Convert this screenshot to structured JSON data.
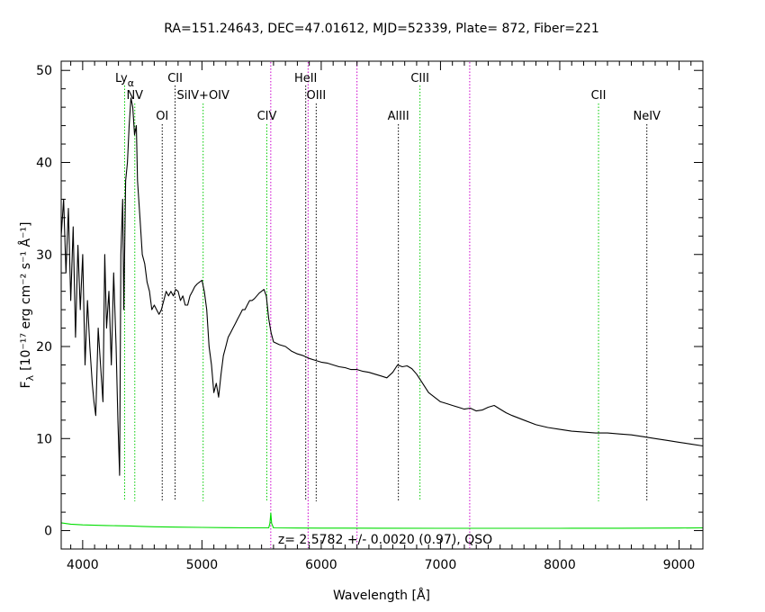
{
  "chart_data": {
    "type": "line",
    "title": "RA=151.24643, DEC=47.01612, MJD=52339, Plate= 872, Fiber=221",
    "xlabel": "Wavelength [Å]",
    "ylabel": "F",
    "ylabel_sub": "λ",
    "ylabel_units": "[10⁻¹⁷ erg cm⁻² s⁻¹ Å⁻¹]",
    "xlim": [
      3820,
      9200
    ],
    "ylim": [
      -2,
      51
    ],
    "x_ticks": [
      4000,
      5000,
      6000,
      7000,
      8000,
      9000
    ],
    "y_ticks": [
      0,
      10,
      20,
      30,
      40,
      50
    ],
    "annotation": "z=  2.5782  +/-  0.0020 (0.97), QSO",
    "colors": {
      "flux": "#000000",
      "error": "#00dd00",
      "emission": "#00cc00",
      "absorption": "#000000",
      "sky": "#cc00cc"
    },
    "lines": [
      {
        "label": "Lyα",
        "name": "Ly",
        "sub": "α",
        "wavelength": 4352,
        "kind": "emission",
        "row": 1
      },
      {
        "label": "NV",
        "wavelength": 4437,
        "kind": "emission",
        "row": 2
      },
      {
        "label": "OI",
        "wavelength": 4667,
        "kind": "absorption",
        "row": 3
      },
      {
        "label": "CII",
        "wavelength": 4775,
        "kind": "absorption",
        "row": 1
      },
      {
        "label": "SiIV+OIV",
        "wavelength": 5010,
        "kind": "emission",
        "row": 2
      },
      {
        "label": "CIV",
        "wavelength": 5544,
        "kind": "emission",
        "row": 3
      },
      {
        "label": "HeII",
        "wavelength": 5870,
        "kind": "absorption",
        "row": 1
      },
      {
        "label": "OIII",
        "wavelength": 5958,
        "kind": "absorption",
        "row": 2
      },
      {
        "label": "AlIII",
        "wavelength": 6647,
        "kind": "absorption",
        "row": 3
      },
      {
        "label": "CIII",
        "wavelength": 6828,
        "kind": "emission",
        "row": 1
      },
      {
        "label": "CII",
        "wavelength": 8325,
        "kind": "emission",
        "row": 2
      },
      {
        "label": "NeIV",
        "wavelength": 8730,
        "kind": "absorption",
        "row": 3
      }
    ],
    "sky_lines": [
      5577,
      5890,
      6300,
      7245
    ],
    "series": [
      {
        "name": "flux",
        "points": [
          [
            3820,
            32
          ],
          [
            3840,
            36
          ],
          [
            3860,
            28
          ],
          [
            3880,
            35
          ],
          [
            3900,
            25
          ],
          [
            3920,
            33
          ],
          [
            3940,
            21
          ],
          [
            3960,
            31
          ],
          [
            3980,
            24
          ],
          [
            4000,
            30
          ],
          [
            4020,
            18
          ],
          [
            4040,
            25
          ],
          [
            4060,
            20
          ],
          [
            4080,
            16
          ],
          [
            4095,
            14
          ],
          [
            4110,
            12.5
          ],
          [
            4130,
            22
          ],
          [
            4150,
            18
          ],
          [
            4170,
            14
          ],
          [
            4185,
            30
          ],
          [
            4200,
            22
          ],
          [
            4220,
            26
          ],
          [
            4240,
            18
          ],
          [
            4260,
            28
          ],
          [
            4280,
            20
          ],
          [
            4295,
            12
          ],
          [
            4310,
            6
          ],
          [
            4320,
            30
          ],
          [
            4335,
            36
          ],
          [
            4345,
            24
          ],
          [
            4360,
            38
          ],
          [
            4375,
            40
          ],
          [
            4390,
            44
          ],
          [
            4405,
            47
          ],
          [
            4420,
            46
          ],
          [
            4435,
            43
          ],
          [
            4450,
            44
          ],
          [
            4460,
            38
          ],
          [
            4480,
            34
          ],
          [
            4500,
            30
          ],
          [
            4520,
            29
          ],
          [
            4540,
            27
          ],
          [
            4560,
            26
          ],
          [
            4580,
            24
          ],
          [
            4600,
            24.5
          ],
          [
            4620,
            24
          ],
          [
            4640,
            23.5
          ],
          [
            4660,
            24
          ],
          [
            4680,
            25
          ],
          [
            4700,
            26
          ],
          [
            4720,
            25.5
          ],
          [
            4740,
            26
          ],
          [
            4760,
            25.5
          ],
          [
            4780,
            26.2
          ],
          [
            4800,
            26
          ],
          [
            4820,
            25
          ],
          [
            4840,
            25.5
          ],
          [
            4860,
            24.5
          ],
          [
            4880,
            24.5
          ],
          [
            4900,
            25.5
          ],
          [
            4920,
            26
          ],
          [
            4940,
            26.5
          ],
          [
            4960,
            26.8
          ],
          [
            4980,
            27
          ],
          [
            5000,
            27.2
          ],
          [
            5020,
            26
          ],
          [
            5040,
            24
          ],
          [
            5060,
            20
          ],
          [
            5080,
            18
          ],
          [
            5100,
            15
          ],
          [
            5120,
            16
          ],
          [
            5140,
            14.5
          ],
          [
            5160,
            17
          ],
          [
            5180,
            19
          ],
          [
            5200,
            20
          ],
          [
            5220,
            21
          ],
          [
            5240,
            21.5
          ],
          [
            5260,
            22
          ],
          [
            5280,
            22.5
          ],
          [
            5300,
            23
          ],
          [
            5320,
            23.5
          ],
          [
            5340,
            24
          ],
          [
            5360,
            24
          ],
          [
            5380,
            24.5
          ],
          [
            5400,
            25
          ],
          [
            5420,
            25
          ],
          [
            5440,
            25.2
          ],
          [
            5460,
            25.5
          ],
          [
            5480,
            25.8
          ],
          [
            5500,
            26
          ],
          [
            5520,
            26.2
          ],
          [
            5540,
            25.5
          ],
          [
            5560,
            23
          ],
          [
            5580,
            21.5
          ],
          [
            5600,
            20.5
          ],
          [
            5650,
            20.2
          ],
          [
            5700,
            20
          ],
          [
            5750,
            19.5
          ],
          [
            5800,
            19.2
          ],
          [
            5850,
            19
          ],
          [
            5900,
            18.7
          ],
          [
            5950,
            18.5
          ],
          [
            6000,
            18.3
          ],
          [
            6050,
            18.2
          ],
          [
            6100,
            18
          ],
          [
            6150,
            17.8
          ],
          [
            6200,
            17.7
          ],
          [
            6250,
            17.5
          ],
          [
            6300,
            17.5
          ],
          [
            6350,
            17.3
          ],
          [
            6400,
            17.2
          ],
          [
            6450,
            17
          ],
          [
            6500,
            16.8
          ],
          [
            6550,
            16.6
          ],
          [
            6600,
            17.2
          ],
          [
            6640,
            18
          ],
          [
            6680,
            17.8
          ],
          [
            6720,
            17.9
          ],
          [
            6760,
            17.6
          ],
          [
            6800,
            17
          ],
          [
            6850,
            16
          ],
          [
            6900,
            15
          ],
          [
            6950,
            14.5
          ],
          [
            7000,
            14
          ],
          [
            7050,
            13.8
          ],
          [
            7100,
            13.6
          ],
          [
            7150,
            13.4
          ],
          [
            7200,
            13.2
          ],
          [
            7250,
            13.3
          ],
          [
            7300,
            13
          ],
          [
            7350,
            13.1
          ],
          [
            7400,
            13.4
          ],
          [
            7450,
            13.6
          ],
          [
            7500,
            13.2
          ],
          [
            7550,
            12.8
          ],
          [
            7600,
            12.5
          ],
          [
            7700,
            12
          ],
          [
            7800,
            11.5
          ],
          [
            7900,
            11.2
          ],
          [
            8000,
            11
          ],
          [
            8100,
            10.8
          ],
          [
            8200,
            10.7
          ],
          [
            8300,
            10.6
          ],
          [
            8400,
            10.6
          ],
          [
            8500,
            10.5
          ],
          [
            8600,
            10.4
          ],
          [
            8700,
            10.2
          ],
          [
            8800,
            10
          ],
          [
            8900,
            9.8
          ],
          [
            9000,
            9.6
          ],
          [
            9100,
            9.4
          ],
          [
            9200,
            9.2
          ]
        ]
      },
      {
        "name": "error",
        "points": [
          [
            3820,
            0.85
          ],
          [
            3900,
            0.7
          ],
          [
            4000,
            0.62
          ],
          [
            4100,
            0.58
          ],
          [
            4200,
            0.55
          ],
          [
            4300,
            0.52
          ],
          [
            4400,
            0.5
          ],
          [
            4500,
            0.45
          ],
          [
            4600,
            0.42
          ],
          [
            4800,
            0.38
          ],
          [
            5000,
            0.35
          ],
          [
            5200,
            0.32
          ],
          [
            5400,
            0.3
          ],
          [
            5560,
            0.3
          ],
          [
            5570,
            0.8
          ],
          [
            5577,
            1.9
          ],
          [
            5584,
            0.8
          ],
          [
            5600,
            0.3
          ],
          [
            5800,
            0.28
          ],
          [
            6000,
            0.27
          ],
          [
            6500,
            0.26
          ],
          [
            7000,
            0.25
          ],
          [
            7500,
            0.25
          ],
          [
            8000,
            0.25
          ],
          [
            8500,
            0.26
          ],
          [
            9000,
            0.28
          ],
          [
            9200,
            0.3
          ]
        ]
      }
    ]
  }
}
